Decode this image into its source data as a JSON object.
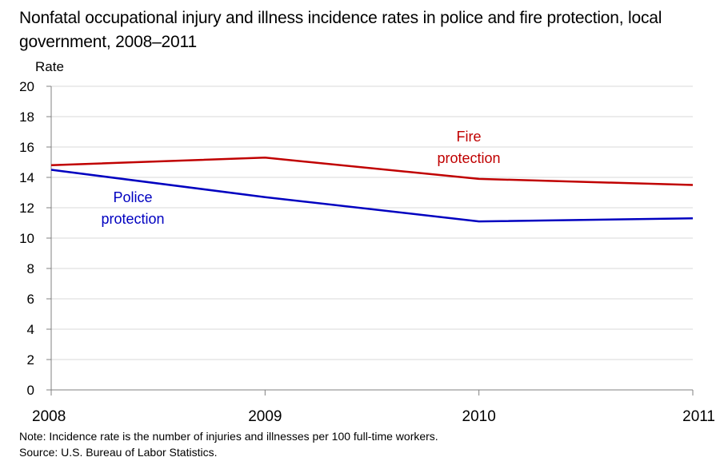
{
  "title": "Nonfatal occupational injury and illness incidence rates in police and fire protection, local government, 2008–2011",
  "note": "Note: Incidence rate is the number of injuries and illnesses per 100 full-time workers.",
  "source": "Source: U.S. Bureau of Labor Statistics.",
  "chart_data": {
    "type": "line",
    "title": "Nonfatal occupational injury and illness incidence rates in police and fire protection, local government, 2008–2011",
    "xlabel": "",
    "ylabel": "Rate",
    "x": [
      "2008",
      "2009",
      "2010",
      "2011"
    ],
    "ylim": [
      0,
      20
    ],
    "yticks": [
      0,
      2,
      4,
      6,
      8,
      10,
      12,
      14,
      16,
      18,
      20
    ],
    "grid": true,
    "series": [
      {
        "name": "Fire protection",
        "label_lines": [
          "Fire",
          "protection"
        ],
        "color": "#c00000",
        "values": [
          14.8,
          15.3,
          13.9,
          13.5
        ]
      },
      {
        "name": "Police protection",
        "label_lines": [
          "Police",
          "protection"
        ],
        "color": "#0000c0",
        "values": [
          14.5,
          12.7,
          11.1,
          11.3
        ]
      }
    ]
  }
}
